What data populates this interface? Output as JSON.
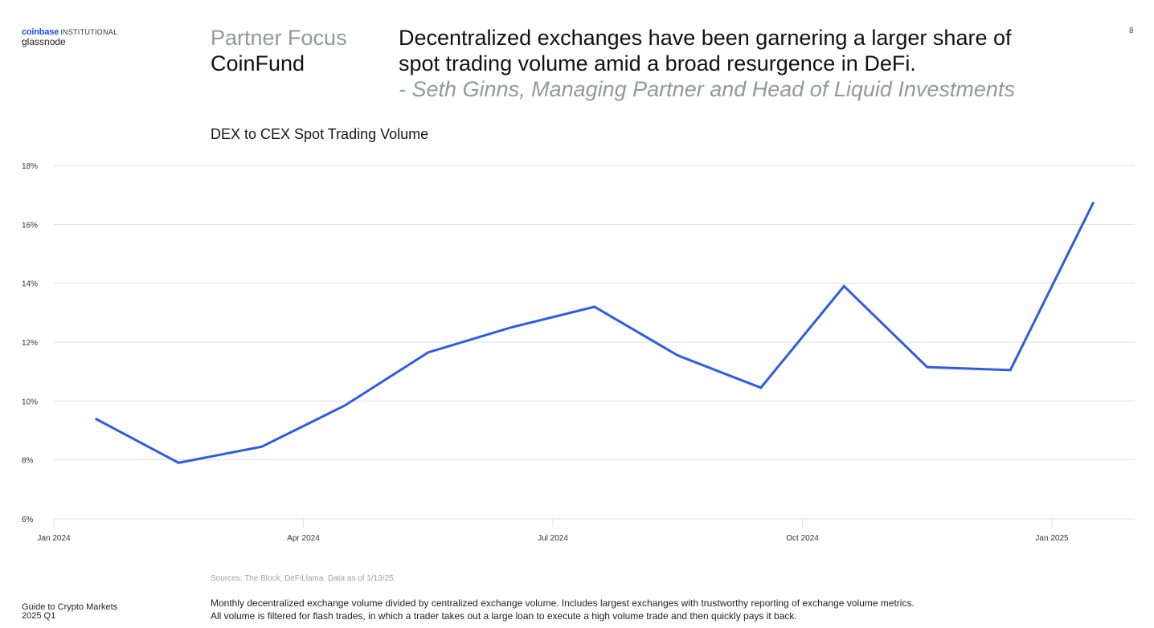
{
  "brand": {
    "coinbase": "coinbase",
    "institutional": "INSTITUTIONAL",
    "glassnode": "glassnode",
    "accent_color": "#1652f0"
  },
  "header": {
    "section_label": "Partner Focus",
    "partner_name": "CoinFund",
    "headline_line1": "Decentralized exchanges have been garnering a larger share of",
    "headline_line2": "spot trading volume amid a broad resurgence in DeFi.",
    "quote_attribution": "- Seth Ginns, Managing Partner and Head of Liquid Investments",
    "page_number": "8"
  },
  "footer": {
    "sources": "Sources: The Block, DeFiLlama. Data as of 1/13/25.",
    "guide_title": "Guide to Crypto Markets",
    "guide_period": "2025 Q1",
    "note_line1": "Monthly decentralized exchange volume divided by centralized exchange volume. Includes largest exchanges with trustworthy reporting of exchange volume metrics.",
    "note_line2": "All volume is filtered for flash trades, in which a trader takes out a large loan to execute a high volume trade and then quickly pays it back."
  },
  "chart_data": {
    "type": "line",
    "title": "DEX to CEX Spot Trading Volume",
    "xlabel": "",
    "ylabel": "",
    "line_color": "#2b5ce6",
    "grid": true,
    "legend": "none",
    "ylim": [
      6,
      18
    ],
    "yticks": [
      6,
      8,
      10,
      12,
      14,
      16,
      18
    ],
    "ytick_labels": [
      "6%",
      "8%",
      "10%",
      "12%",
      "14%",
      "16%",
      "18%"
    ],
    "x_month_range": [
      0,
      13.5
    ],
    "xticks": [
      0,
      3,
      6,
      9,
      12
    ],
    "xtick_labels": [
      "Jan 2024",
      "Apr 2024",
      "Jul 2024",
      "Oct 2024",
      "Jan 2025"
    ],
    "series": [
      {
        "name": "DEX to CEX Spot Trading Volume",
        "x": [
          "2024-01",
          "2024-02",
          "2024-03",
          "2024-04",
          "2024-05",
          "2024-06",
          "2024-07",
          "2024-08",
          "2024-09",
          "2024-10",
          "2024-11",
          "2024-12",
          "2025-01"
        ],
        "x_month_index": [
          0.5,
          1.5,
          2.5,
          3.5,
          4.5,
          5.5,
          6.5,
          7.5,
          8.5,
          9.5,
          10.5,
          11.5,
          12.5
        ],
        "values": [
          9.4,
          7.9,
          8.45,
          9.85,
          11.65,
          12.5,
          13.2,
          11.55,
          10.45,
          13.9,
          11.15,
          11.05,
          16.75
        ]
      }
    ]
  }
}
